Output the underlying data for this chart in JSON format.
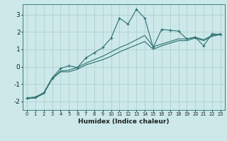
{
  "xlabel": "Humidex (Indice chaleur)",
  "background_color": "#cce8e8",
  "grid_color": "#aacccc",
  "line_color": "#2a7070",
  "xlim": [
    -0.5,
    23.5
  ],
  "ylim": [
    -2.5,
    3.6
  ],
  "yticks": [
    -2,
    -1,
    0,
    1,
    2,
    3
  ],
  "xticks": [
    0,
    1,
    2,
    3,
    4,
    5,
    6,
    7,
    8,
    9,
    10,
    11,
    12,
    13,
    14,
    15,
    16,
    17,
    18,
    19,
    20,
    21,
    22,
    23
  ],
  "series1_x": [
    0,
    1,
    2,
    3,
    4,
    5,
    6,
    7,
    8,
    9,
    10,
    11,
    12,
    13,
    14,
    15,
    16,
    17,
    18,
    19,
    20,
    21,
    22,
    23
  ],
  "series1_y": [
    -1.8,
    -1.75,
    -1.5,
    -0.65,
    -0.1,
    0.05,
    -0.05,
    0.5,
    0.8,
    1.1,
    1.65,
    2.8,
    2.45,
    3.3,
    2.8,
    1.1,
    2.15,
    2.1,
    2.05,
    1.6,
    1.7,
    1.2,
    1.9,
    1.85
  ],
  "series2_x": [
    0,
    1,
    2,
    3,
    4,
    5,
    6,
    7,
    8,
    9,
    10,
    11,
    12,
    13,
    14,
    15,
    16,
    17,
    18,
    19,
    20,
    21,
    22,
    23
  ],
  "series2_y": [
    -1.85,
    -1.8,
    -1.55,
    -0.7,
    -0.3,
    -0.3,
    -0.15,
    0.1,
    0.25,
    0.4,
    0.6,
    0.85,
    1.05,
    1.25,
    1.45,
    1.0,
    1.2,
    1.35,
    1.5,
    1.5,
    1.65,
    1.5,
    1.75,
    1.85
  ],
  "series3_x": [
    0,
    1,
    2,
    3,
    4,
    5,
    6,
    7,
    8,
    9,
    10,
    11,
    12,
    13,
    14,
    15,
    16,
    17,
    18,
    19,
    20,
    21,
    22,
    23
  ],
  "series3_y": [
    -1.85,
    -1.8,
    -1.55,
    -0.7,
    -0.25,
    -0.2,
    -0.05,
    0.2,
    0.4,
    0.6,
    0.85,
    1.1,
    1.3,
    1.55,
    1.8,
    1.15,
    1.3,
    1.45,
    1.6,
    1.6,
    1.7,
    1.55,
    1.8,
    1.9
  ]
}
